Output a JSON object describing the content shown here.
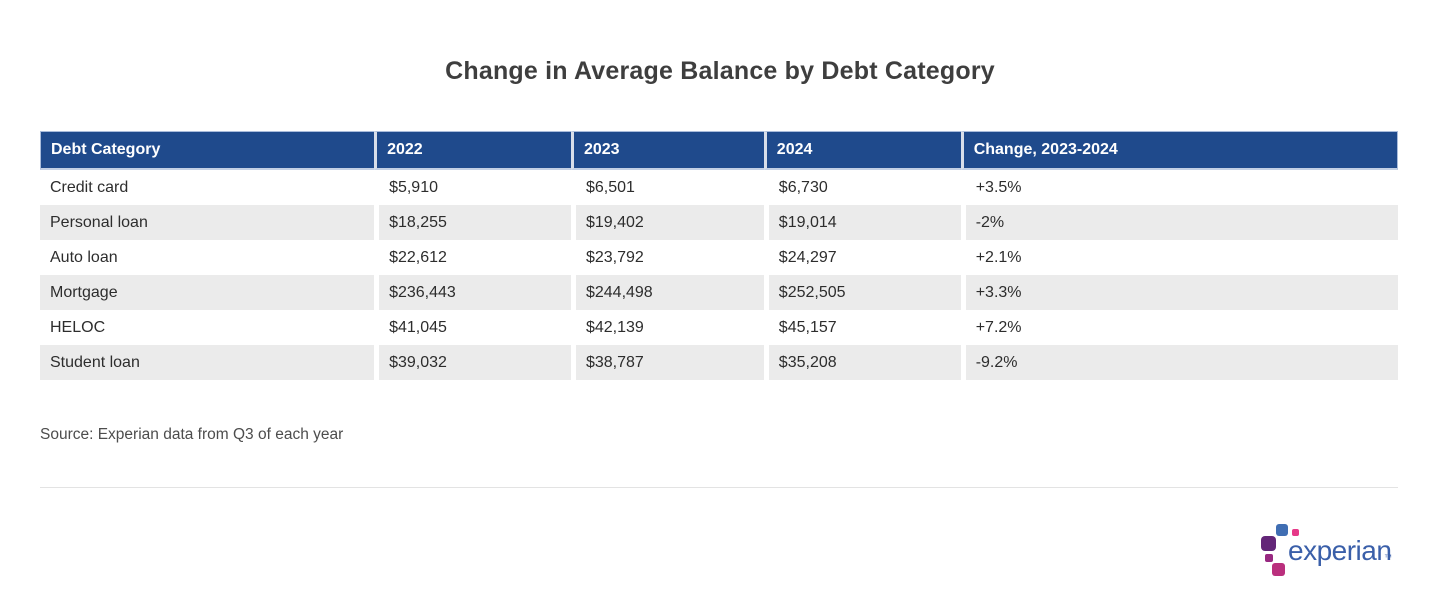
{
  "page": {
    "title": "Change in Average Balance by Debt Category",
    "source_note": "Source: Experian data from Q3 of each year"
  },
  "table": {
    "columns": [
      "Debt Category",
      "2022",
      "2023",
      "2024",
      "Change, 2023-2024"
    ],
    "rows": [
      [
        "Credit card",
        "$5,910",
        "$6,501",
        "$6,730",
        "+3.5%"
      ],
      [
        "Personal loan",
        "$18,255",
        "$19,402",
        "$19,014",
        "-2%"
      ],
      [
        "Auto loan",
        "$22,612",
        "$23,792",
        "$24,297",
        "+2.1%"
      ],
      [
        "Mortgage",
        "$236,443",
        "$244,498",
        "$252,505",
        "+3.3%"
      ],
      [
        "HELOC",
        "$41,045",
        "$42,139",
        "$45,157",
        "+7.2%"
      ],
      [
        "Student loan",
        "$39,032",
        "$38,787",
        "$35,208",
        "-9.2%"
      ]
    ]
  },
  "chart_data": {
    "type": "table",
    "title": "Change in Average Balance by Debt Category",
    "categories": [
      "Credit card",
      "Personal loan",
      "Auto loan",
      "Mortgage",
      "HELOC",
      "Student loan"
    ],
    "series": [
      {
        "name": "2022",
        "values": [
          5910,
          18255,
          22612,
          236443,
          41045,
          39032
        ]
      },
      {
        "name": "2023",
        "values": [
          6501,
          19402,
          23792,
          244498,
          42139,
          38787
        ]
      },
      {
        "name": "2024",
        "values": [
          6730,
          19014,
          24297,
          252505,
          45157,
          35208
        ]
      },
      {
        "name": "Change, 2023-2024 (%)",
        "values": [
          3.5,
          -2,
          2.1,
          3.3,
          7.2,
          -9.2
        ]
      }
    ],
    "source": "Source: Experian data from Q3 of each year"
  },
  "logo": {
    "wordmark": "experian",
    "trademark": "™"
  },
  "colors": {
    "header_bg": "#1F4A8C",
    "row_stripe": "#EBEBEB",
    "body_text": "#2D2D2D",
    "title_text": "#3E3E3E",
    "logo_blue": "#406EB3",
    "logo_purple": "#632678",
    "logo_violet": "#982881",
    "logo_magenta": "#BA2F7D",
    "logo_pink": "#E63888",
    "wordmark_blue": "#3A5FA9"
  }
}
